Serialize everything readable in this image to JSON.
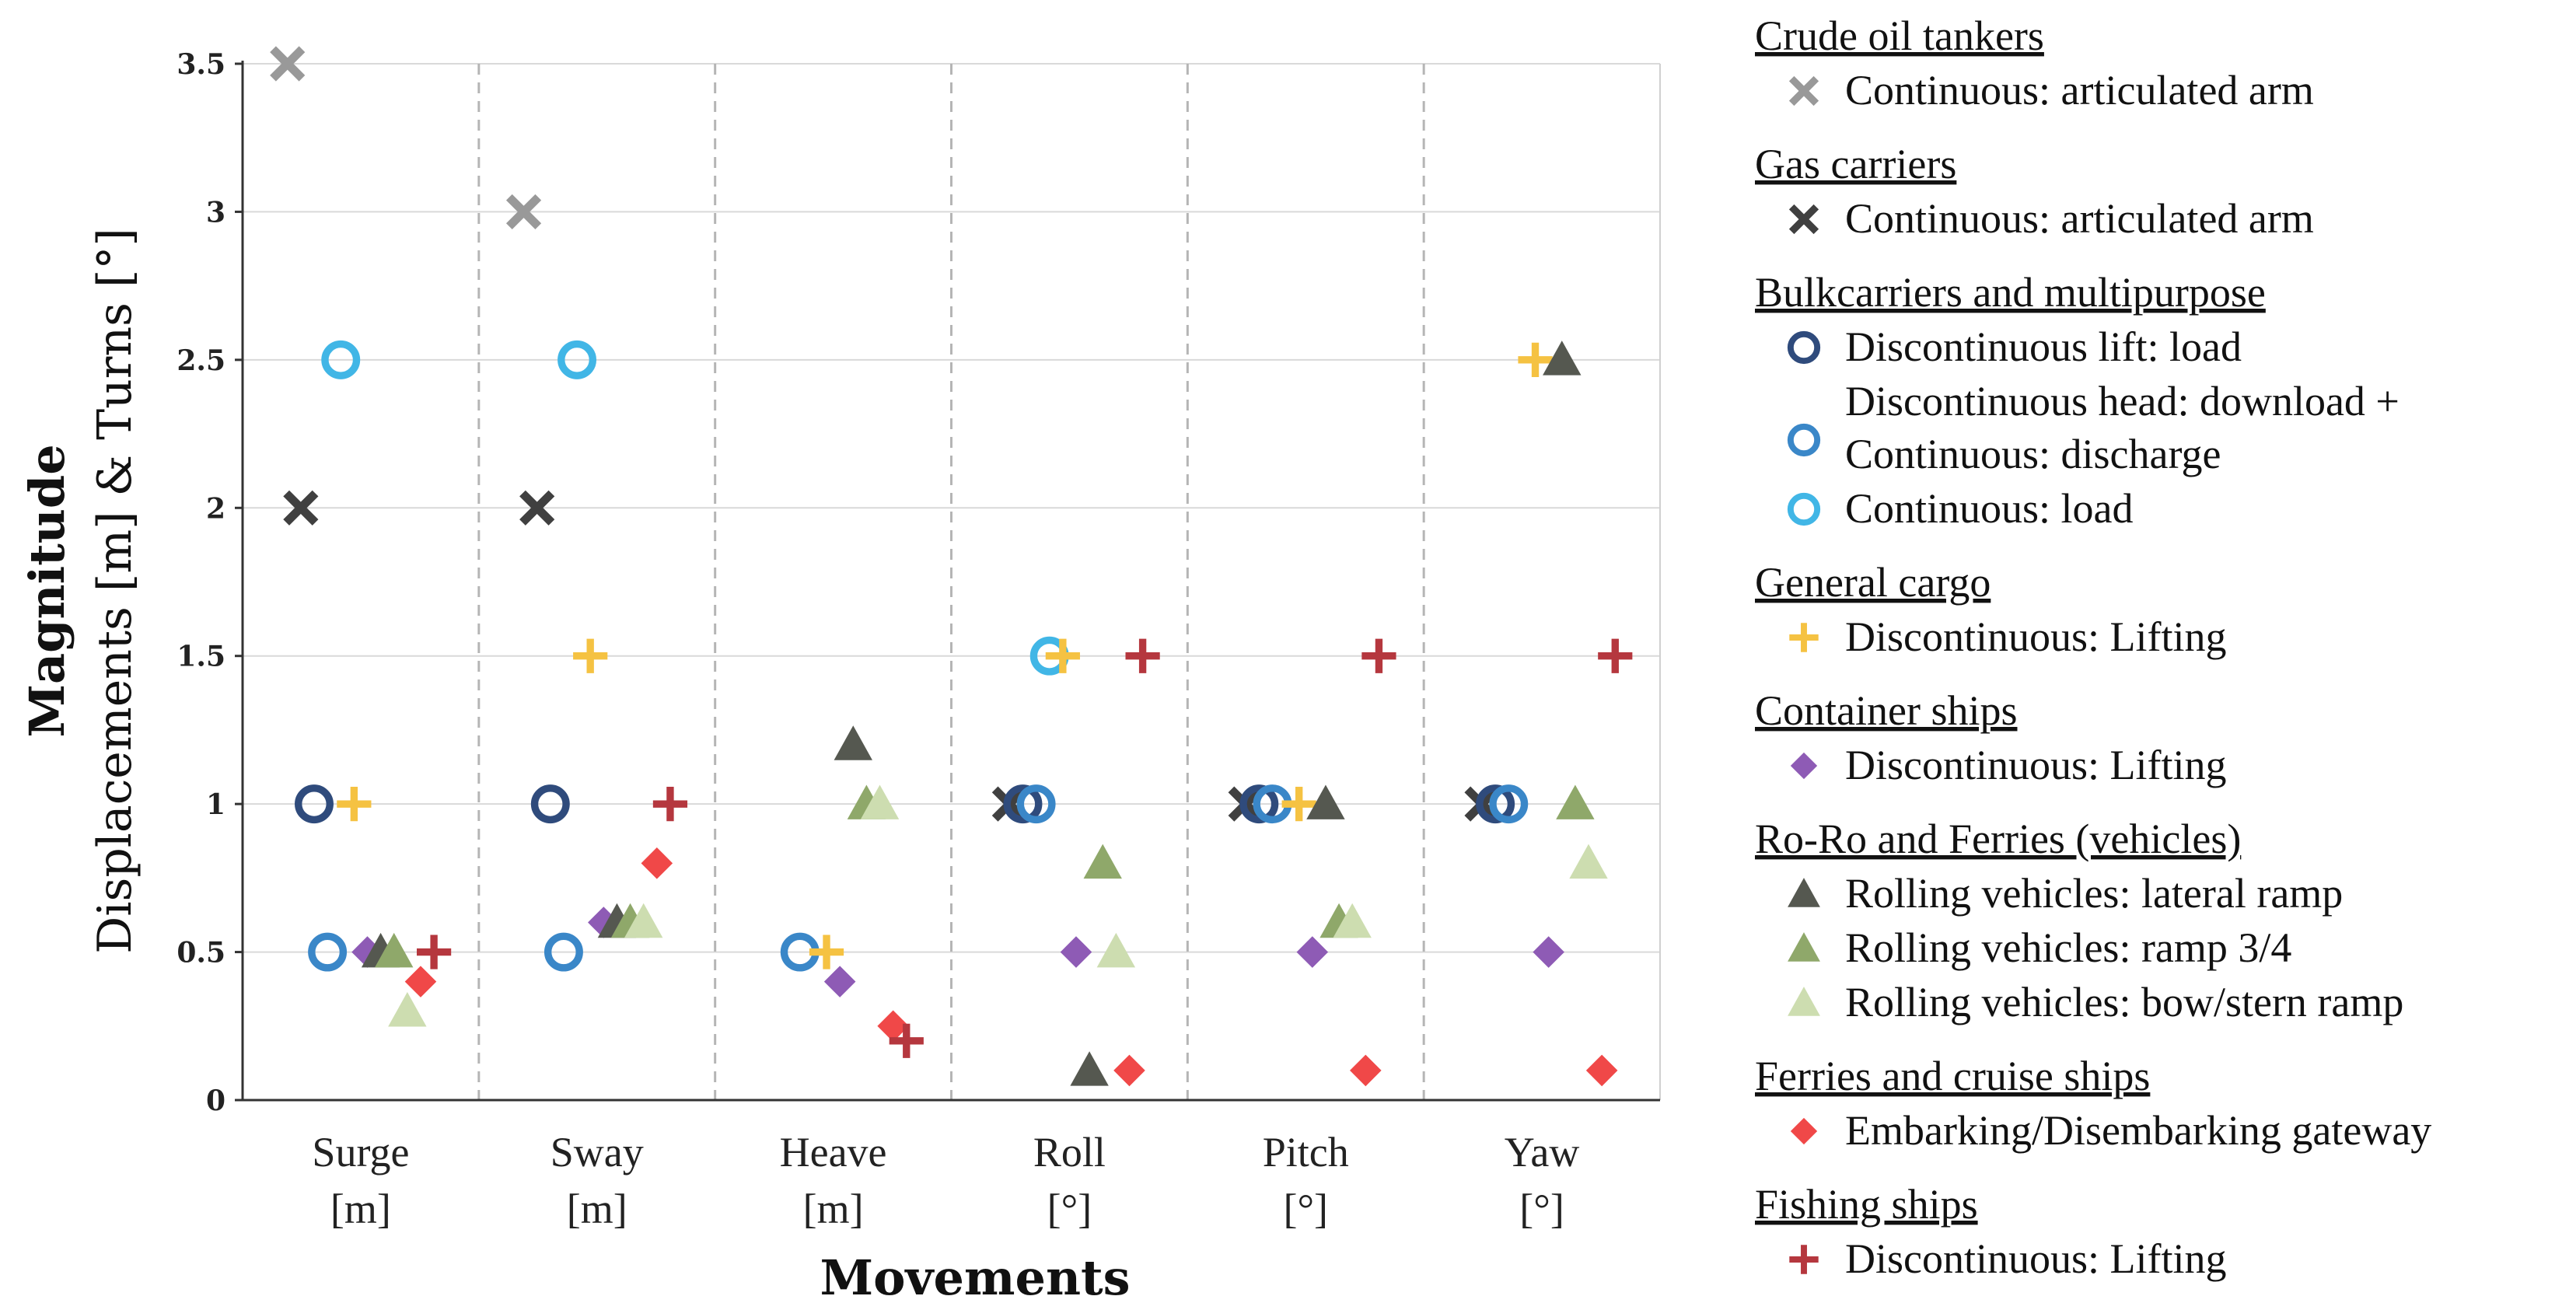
{
  "chart_data": {
    "type": "scatter",
    "title": "",
    "xlabel": "Movements",
    "ylabel_main": "Magnitude",
    "ylabel_sub": "Displacements [m] & Turns [°]",
    "ylim": [
      0,
      3.5
    ],
    "yticks": [
      "0",
      "0.5",
      "1",
      "1.5",
      "2",
      "2.5",
      "3",
      "3.5"
    ],
    "grid": true,
    "legend_position": "right",
    "categories": [
      {
        "line1": "Surge",
        "line2": "[m]"
      },
      {
        "line1": "Sway",
        "line2": "[m]"
      },
      {
        "line1": "Heave",
        "line2": "[m]"
      },
      {
        "line1": "Roll",
        "line2": "[°]"
      },
      {
        "line1": "Pitch",
        "line2": "[°]"
      },
      {
        "line1": "Yaw",
        "line2": "[°]"
      }
    ],
    "legend_groups": [
      {
        "title": "Crude oil tankers",
        "series_ids": [
          "crude_arm"
        ]
      },
      {
        "title": "Gas carriers",
        "series_ids": [
          "gas_arm"
        ]
      },
      {
        "title": "Bulkcarriers and multipurpose",
        "series_ids": [
          "bulk_lift_load",
          "bulk_head",
          "bulk_cont_load"
        ]
      },
      {
        "title": "General cargo",
        "series_ids": [
          "gen_cargo"
        ]
      },
      {
        "title": "Container ships",
        "series_ids": [
          "container"
        ]
      },
      {
        "title": "Ro-Ro and Ferries (vehicles)",
        "series_ids": [
          "roro_lateral",
          "roro_34",
          "roro_bow"
        ]
      },
      {
        "title": "Ferries and cruise ships",
        "series_ids": [
          "ferry_gateway"
        ]
      },
      {
        "title": "Fishing ships",
        "series_ids": [
          "fishing"
        ]
      }
    ],
    "series": [
      {
        "id": "crude_arm",
        "name": "Continuous: articulated arm",
        "marker": "x",
        "color": "#999999",
        "points": [
          {
            "cat": 0,
            "y": 3.5
          },
          {
            "cat": 1,
            "y": 3.0
          }
        ]
      },
      {
        "id": "gas_arm",
        "name": "Continuous: articulated arm",
        "marker": "x",
        "color": "#404040",
        "points": [
          {
            "cat": 0,
            "y": 2.0
          },
          {
            "cat": 1,
            "y": 2.0
          },
          {
            "cat": 3,
            "y": 1.0
          },
          {
            "cat": 4,
            "y": 1.0
          },
          {
            "cat": 5,
            "y": 1.0
          }
        ]
      },
      {
        "id": "bulk_lift_load",
        "name": "Discontinuous lift: load",
        "marker": "circle",
        "color": "#2F4B7C",
        "points": [
          {
            "cat": 0,
            "y": 1.0
          },
          {
            "cat": 1,
            "y": 1.0
          },
          {
            "cat": 3,
            "y": 1.0
          },
          {
            "cat": 4,
            "y": 1.0
          },
          {
            "cat": 5,
            "y": 1.0
          }
        ]
      },
      {
        "id": "bulk_head",
        "name": "Discontinuous head: download + Continuous: discharge",
        "marker": "circle",
        "color": "#3A87C8",
        "points": [
          {
            "cat": 0,
            "y": 0.5
          },
          {
            "cat": 1,
            "y": 0.5
          },
          {
            "cat": 2,
            "y": 0.5
          },
          {
            "cat": 3,
            "y": 1.0
          },
          {
            "cat": 4,
            "y": 1.0
          },
          {
            "cat": 5,
            "y": 1.0
          }
        ]
      },
      {
        "id": "bulk_cont_load",
        "name": "Continuous: load",
        "marker": "circle",
        "color": "#41B6E6",
        "points": [
          {
            "cat": 0,
            "y": 2.5
          },
          {
            "cat": 1,
            "y": 2.5
          },
          {
            "cat": 3,
            "y": 1.5
          }
        ]
      },
      {
        "id": "gen_cargo",
        "name": "Discontinuous: Lifting",
        "marker": "plus",
        "color": "#F5C242",
        "points": [
          {
            "cat": 0,
            "y": 1.0
          },
          {
            "cat": 1,
            "y": 1.5
          },
          {
            "cat": 2,
            "y": 0.5
          },
          {
            "cat": 3,
            "y": 1.5
          },
          {
            "cat": 4,
            "y": 1.0
          },
          {
            "cat": 5,
            "y": 2.5
          }
        ]
      },
      {
        "id": "container",
        "name": "Discontinuous: Lifting",
        "marker": "diamond",
        "color": "#8E5BB5",
        "points": [
          {
            "cat": 0,
            "y": 0.5
          },
          {
            "cat": 1,
            "y": 0.6
          },
          {
            "cat": 2,
            "y": 0.4
          },
          {
            "cat": 3,
            "y": 0.5
          },
          {
            "cat": 4,
            "y": 0.5
          },
          {
            "cat": 5,
            "y": 0.5
          }
        ]
      },
      {
        "id": "roro_lateral",
        "name": "Rolling vehicles: lateral ramp",
        "marker": "triangle",
        "color": "#555850",
        "points": [
          {
            "cat": 0,
            "y": 0.5
          },
          {
            "cat": 1,
            "y": 0.6
          },
          {
            "cat": 2,
            "y": 1.2
          },
          {
            "cat": 3,
            "y": 0.1
          },
          {
            "cat": 4,
            "y": 1.0
          },
          {
            "cat": 5,
            "y": 2.5
          }
        ]
      },
      {
        "id": "roro_34",
        "name": "Rolling vehicles: ramp 3/4",
        "marker": "triangle",
        "color": "#8FA86A",
        "points": [
          {
            "cat": 0,
            "y": 0.5
          },
          {
            "cat": 1,
            "y": 0.6
          },
          {
            "cat": 2,
            "y": 1.0
          },
          {
            "cat": 3,
            "y": 0.8
          },
          {
            "cat": 4,
            "y": 0.6
          },
          {
            "cat": 5,
            "y": 1.0
          }
        ]
      },
      {
        "id": "roro_bow",
        "name": "Rolling vehicles: bow/stern ramp",
        "marker": "triangle",
        "color": "#CDDDB0",
        "points": [
          {
            "cat": 0,
            "y": 0.3
          },
          {
            "cat": 1,
            "y": 0.6
          },
          {
            "cat": 2,
            "y": 1.0
          },
          {
            "cat": 3,
            "y": 0.5
          },
          {
            "cat": 4,
            "y": 0.6
          },
          {
            "cat": 5,
            "y": 0.8
          }
        ]
      },
      {
        "id": "ferry_gateway",
        "name": "Embarking/Disembarking gateway",
        "marker": "diamond",
        "color": "#F04848",
        "points": [
          {
            "cat": 0,
            "y": 0.4
          },
          {
            "cat": 1,
            "y": 0.8
          },
          {
            "cat": 2,
            "y": 0.25
          },
          {
            "cat": 3,
            "y": 0.1
          },
          {
            "cat": 4,
            "y": 0.1
          },
          {
            "cat": 5,
            "y": 0.1
          }
        ]
      },
      {
        "id": "fishing",
        "name": "Discontinuous: Lifting",
        "marker": "plus",
        "color": "#B5373E",
        "points": [
          {
            "cat": 0,
            "y": 0.5
          },
          {
            "cat": 1,
            "y": 1.0
          },
          {
            "cat": 2,
            "y": 0.2
          },
          {
            "cat": 3,
            "y": 1.5
          },
          {
            "cat": 4,
            "y": 1.5
          },
          {
            "cat": 5,
            "y": 1.5
          }
        ]
      }
    ]
  }
}
